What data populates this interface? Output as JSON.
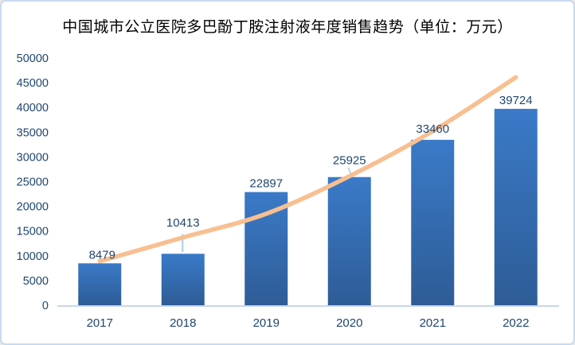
{
  "window": {
    "background": "#FFFFFF",
    "border_color": "#C9DAF0"
  },
  "chart_data": {
    "type": "bar",
    "title": "中国城市公立医院多巴酚丁胺注射液年度销售趋势（单位：万元）",
    "categories": [
      "2017",
      "2018",
      "2019",
      "2020",
      "2021",
      "2022"
    ],
    "values": [
      8479,
      10413,
      22897,
      25925,
      33460,
      39724
    ],
    "data_labels": [
      "8479",
      "10413",
      "22897",
      "25925",
      "33460",
      "39724"
    ],
    "trendline": {
      "type": "smooth",
      "values": [
        8900,
        13700,
        18500,
        26100,
        35200,
        46100
      ]
    },
    "xlabel": "",
    "ylabel": "",
    "ylim": [
      0,
      50000
    ],
    "ytick_step": 5000,
    "yticks": [
      0,
      5000,
      10000,
      15000,
      20000,
      25000,
      30000,
      35000,
      40000,
      45000,
      50000
    ],
    "grid": false,
    "legend": false,
    "colors": {
      "bar_gradient_top": "#3A7AC8",
      "bar_gradient_bottom": "#2E5C96",
      "trendline": "#F8BF90",
      "axis_text": "#1F4670",
      "title_text": "#000000",
      "axis_line": "#C9D7EA",
      "leader_line": "#B8D4EE"
    }
  }
}
